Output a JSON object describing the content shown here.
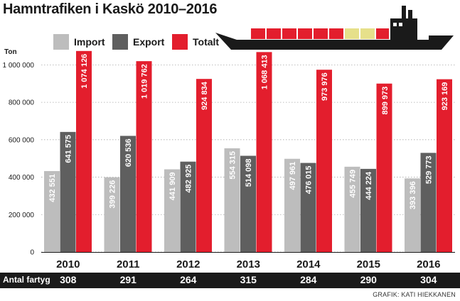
{
  "title": "Hamntrafiken i Kaskö 2010–2016",
  "legend": [
    {
      "label": "Import",
      "color": "#bdbdbd"
    },
    {
      "label": "Export",
      "color": "#5f5f5f"
    },
    {
      "label": "Totalt",
      "color": "#e31e2d"
    }
  ],
  "unit_label": "Ton",
  "fleet_label": "Antal fartyg",
  "fleet_counts": [
    "308",
    "291",
    "264",
    "315",
    "284",
    "290",
    "304"
  ],
  "credit": "GRAFIK: KATI HIEKKANEN",
  "ship_icon": "cargo-ship-icon",
  "chart_data": {
    "type": "bar",
    "title": "Hamntrafiken i Kaskö 2010–2016",
    "ylabel": "Ton",
    "ylim": [
      0,
      1100000
    ],
    "yticks": [
      0,
      200000,
      400000,
      600000,
      800000,
      1000000
    ],
    "ytick_labels": [
      "0",
      "200 000",
      "400 000",
      "600 000",
      "800 000",
      "1 000 000"
    ],
    "categories": [
      "2010",
      "2011",
      "2012",
      "2013",
      "2014",
      "2015",
      "2016"
    ],
    "series": [
      {
        "name": "Import",
        "color": "#bdbdbd",
        "values": [
          432551,
          399226,
          441909,
          554315,
          497961,
          455749,
          393396
        ],
        "labels": [
          "432 551",
          "399 226",
          "441 909",
          "554 315",
          "497 961",
          "455 749",
          "393 396"
        ]
      },
      {
        "name": "Export",
        "color": "#5f5f5f",
        "values": [
          641575,
          620536,
          482925,
          514098,
          476015,
          444224,
          529773
        ],
        "labels": [
          "641 575",
          "620 536",
          "482 925",
          "514 098",
          "476 015",
          "444 224",
          "529 773"
        ]
      },
      {
        "name": "Totalt",
        "color": "#e31e2d",
        "values": [
          1074126,
          1019762,
          924834,
          1068413,
          973976,
          899973,
          923169
        ],
        "labels": [
          "1 074 126",
          "1 019 762",
          "924 834",
          "1 068 413",
          "973 976",
          "899 973",
          "923 169"
        ]
      }
    ]
  }
}
